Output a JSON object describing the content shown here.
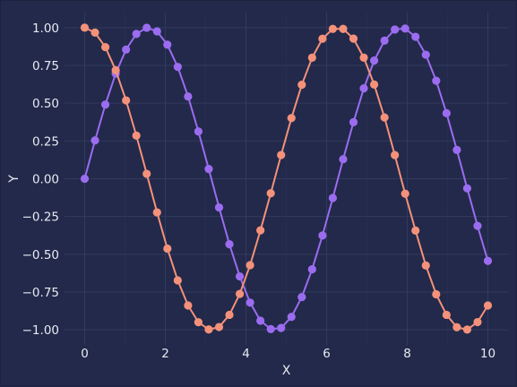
{
  "chart_data": {
    "type": "line",
    "xlabel": "X",
    "ylabel": "Y",
    "xlim": [
      -0.5,
      10.5
    ],
    "ylim": [
      -1.1,
      1.1
    ],
    "xticks": [
      0,
      2,
      4,
      6,
      8,
      10
    ],
    "yticks": [
      -1.0,
      -0.75,
      -0.5,
      -0.25,
      0.0,
      0.25,
      0.5,
      0.75,
      1.0
    ],
    "xtick_labels": [
      "0",
      "2",
      "4",
      "6",
      "8",
      "10"
    ],
    "ytick_labels": [
      "−1.00",
      "−0.75",
      "−0.50",
      "−0.25",
      "0.00",
      "0.25",
      "0.50",
      "0.75",
      "1.00"
    ],
    "grid": true,
    "x": [
      0.0,
      0.2564,
      0.5128,
      0.7692,
      1.0256,
      1.2821,
      1.5385,
      1.7949,
      2.0513,
      2.3077,
      2.5641,
      2.8205,
      3.0769,
      3.3333,
      3.5897,
      3.8462,
      4.1026,
      4.359,
      4.6154,
      4.8718,
      5.1282,
      5.3846,
      5.641,
      5.8974,
      6.1538,
      6.4103,
      6.6667,
      6.9231,
      7.1795,
      7.4359,
      7.6923,
      7.9487,
      8.2051,
      8.4615,
      8.7179,
      8.9744,
      9.2308,
      9.4872,
      9.7436,
      10.0
    ],
    "series": [
      {
        "color": "#9b6cf0",
        "values": [
          0.0,
          0.2536,
          0.4907,
          0.6957,
          0.855,
          0.9585,
          0.9995,
          0.9753,
          0.8871,
          0.7402,
          0.5443,
          0.3129,
          0.0647,
          -0.1906,
          -0.4336,
          -0.6467,
          -0.8201,
          -0.9397,
          -0.9955,
          -0.988,
          -0.9148,
          -0.7832,
          -0.5995,
          -0.3758,
          -0.1275,
          0.1293,
          0.3742,
          0.598,
          0.782,
          0.914,
          0.9877,
          0.9938,
          0.9396,
          0.8209,
          0.6488,
          0.4335,
          0.1906,
          -0.0641,
          -0.3123,
          -0.544
        ]
      },
      {
        "color": "#f4917a",
        "values": [
          1.0,
          0.9673,
          0.8713,
          0.7183,
          0.5186,
          0.2853,
          0.0323,
          -0.2228,
          -0.4624,
          -0.6727,
          -0.8389,
          -0.9499,
          -0.9979,
          -0.9817,
          -0.901,
          -0.7628,
          -0.5721,
          -0.3419,
          -0.0964,
          0.1569,
          0.4014,
          0.6218,
          0.8013,
          0.9267,
          0.9919,
          0.9916,
          0.9275,
          0.8014,
          0.6233,
          0.4054,
          0.1564,
          -0.0995,
          -0.3431,
          -0.5745,
          -0.7648,
          -0.901,
          -0.9832,
          -0.9985,
          -0.9491,
          -0.8391
        ]
      }
    ]
  }
}
